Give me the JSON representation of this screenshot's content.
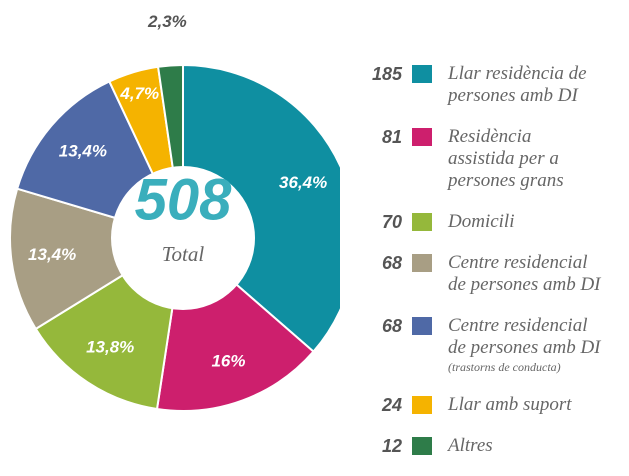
{
  "chart_data": {
    "type": "donut",
    "center_value": "508",
    "center_label": "Total",
    "slices": [
      {
        "name": "Llar residència de\npersones amb DI",
        "value": 36.4,
        "value_label": "36,4%",
        "count": 185,
        "color": "#0f8fa1"
      },
      {
        "name": "Residència\nassistida per a\npersones grans",
        "value": 16,
        "value_label": "16%",
        "count": 81,
        "color": "#cd1f6d"
      },
      {
        "name": "Domicili",
        "value": 13.8,
        "value_label": "13,8%",
        "count": 70,
        "color": "#95b83b"
      },
      {
        "name": "Centre residencial\nde persones amb DI",
        "value": 13.4,
        "value_label": "13,4%",
        "count": 68,
        "color": "#a89e84"
      },
      {
        "name": "Centre residencial\nde persones amb DI",
        "note": "(trastorns de conducta)",
        "value": 13.4,
        "value_label": "13,4%",
        "count": 68,
        "color": "#4f69a6"
      },
      {
        "name": "Llar amb suport",
        "value": 4.7,
        "value_label": "4,7%",
        "count": 24,
        "color": "#f5b300"
      },
      {
        "name": "Altres",
        "value": 2.3,
        "value_label": "2,3%",
        "count": 12,
        "color": "#2e7c49"
      }
    ]
  }
}
